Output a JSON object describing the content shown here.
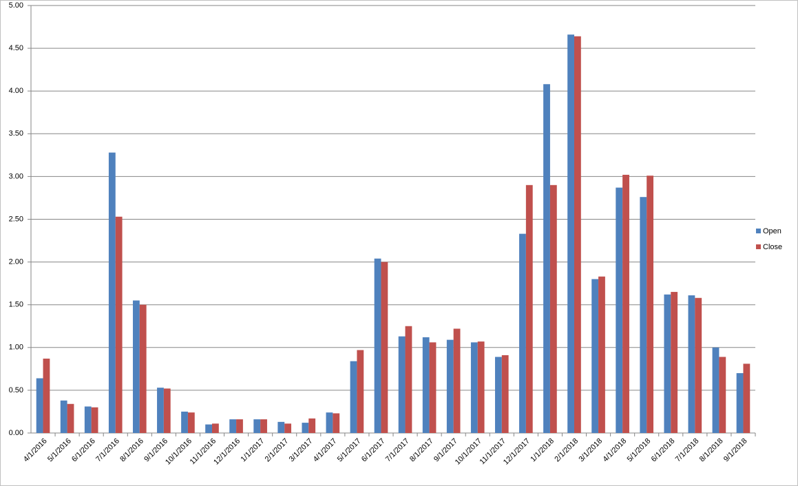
{
  "chart_data": {
    "type": "bar",
    "categories": [
      "4/1/2016",
      "5/1/2016",
      "6/1/2016",
      "7/1/2016",
      "8/1/2016",
      "9/1/2016",
      "10/1/2016",
      "11/1/2016",
      "12/1/2016",
      "1/1/2017",
      "2/1/2017",
      "3/1/2017",
      "4/1/2017",
      "5/1/2017",
      "6/1/2017",
      "7/1/2017",
      "8/1/2017",
      "9/1/2017",
      "10/1/2017",
      "11/1/2017",
      "12/1/2017",
      "1/1/2018",
      "2/1/2018",
      "3/1/2018",
      "4/1/2018",
      "5/1/2018",
      "6/1/2018",
      "7/1/2018",
      "8/1/2018",
      "9/1/2018"
    ],
    "series": [
      {
        "name": "Open",
        "color": "#4f81bd",
        "values": [
          0.64,
          0.38,
          0.31,
          3.28,
          1.55,
          0.53,
          0.25,
          0.1,
          0.16,
          0.16,
          0.13,
          0.12,
          0.24,
          0.84,
          2.04,
          1.13,
          1.12,
          1.09,
          1.06,
          0.89,
          2.33,
          4.08,
          4.66,
          1.8,
          2.87,
          2.76,
          1.62,
          1.61,
          1.0,
          0.7
        ]
      },
      {
        "name": "Close",
        "color": "#c0504d",
        "values": [
          0.87,
          0.34,
          0.3,
          2.53,
          1.5,
          0.52,
          0.24,
          0.11,
          0.16,
          0.16,
          0.11,
          0.17,
          0.23,
          0.97,
          2.0,
          1.25,
          1.06,
          1.22,
          1.07,
          0.91,
          2.9,
          2.9,
          4.64,
          1.83,
          3.02,
          3.01,
          1.65,
          1.58,
          0.89,
          0.81
        ]
      }
    ],
    "ylim": [
      0,
      5
    ],
    "yticks": [
      {
        "value": 0,
        "label": "0.00"
      },
      {
        "value": 0.5,
        "label": "0.50"
      },
      {
        "value": 1,
        "label": "1.00"
      },
      {
        "value": 1.5,
        "label": "1.50"
      },
      {
        "value": 2,
        "label": "2.00"
      },
      {
        "value": 2.5,
        "label": "2.50"
      },
      {
        "value": 3,
        "label": "3.00"
      },
      {
        "value": 3.5,
        "label": "3.50"
      },
      {
        "value": 4,
        "label": "4.00"
      },
      {
        "value": 4.5,
        "label": "4.50"
      },
      {
        "value": 5,
        "label": "5.00"
      }
    ],
    "grid": true,
    "legend": "right"
  }
}
